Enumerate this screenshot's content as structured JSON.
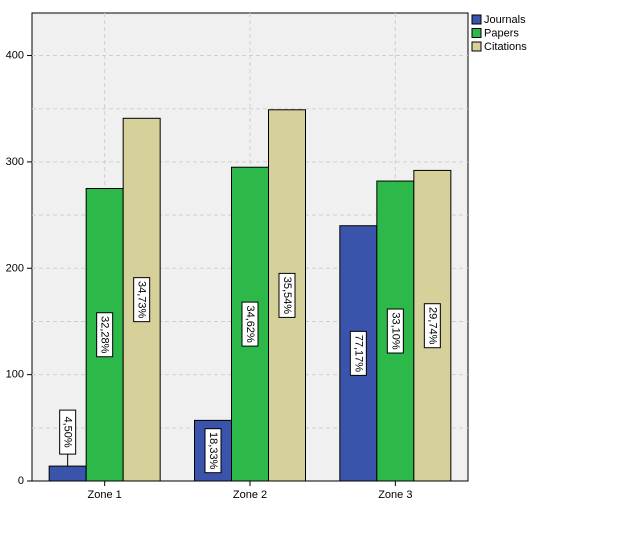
{
  "colors": {
    "background": "#ffffff",
    "plot_background": "#f0f0f0",
    "grid": "#cfcfcf",
    "axis": "#000000",
    "label_box": "#ffffff"
  },
  "chart_data": {
    "type": "bar",
    "title": "",
    "xlabel": "",
    "ylabel": "",
    "categories": [
      "Zone 1",
      "Zone 2",
      "Zone 3"
    ],
    "ylim": [
      0,
      440
    ],
    "yticks": [
      0,
      100,
      200,
      300,
      400
    ],
    "grid": true,
    "legend_position": "top-right",
    "series": [
      {
        "name": "Journals",
        "color": "#3b54ab",
        "values": [
          14,
          57,
          240
        ],
        "labels": [
          "4,50%",
          "18,33%",
          "77,17%"
        ]
      },
      {
        "name": "Papers",
        "color": "#2db84a",
        "values": [
          275,
          295,
          282
        ],
        "labels": [
          "32,28%",
          "34,62%",
          "33,10%"
        ]
      },
      {
        "name": "Citations",
        "color": "#d6d19a",
        "values": [
          341,
          349,
          292
        ],
        "labels": [
          "34,73%",
          "35,54%",
          "29,74%"
        ]
      }
    ]
  }
}
